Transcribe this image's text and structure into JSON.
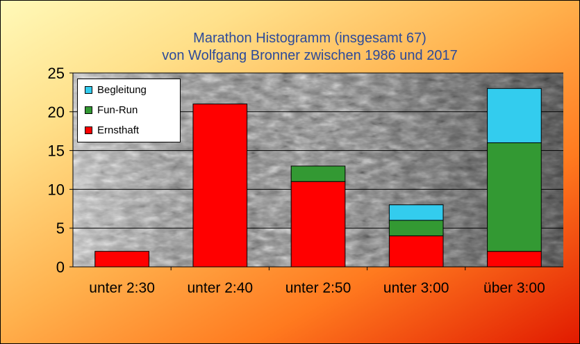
{
  "chart_data": {
    "type": "bar",
    "stacked": true,
    "title": "Marathon Histogramm (insgesamt 67)",
    "subtitle": "von Wolfgang Bronner zwischen 1986 und 2017",
    "categories": [
      "unter 2:30",
      "unter 2:40",
      "unter 2:50",
      "unter 3:00",
      "über 3:00"
    ],
    "series": [
      {
        "name": "Ernsthaft",
        "color": "#ff0000",
        "values": [
          2,
          21,
          11,
          4,
          2
        ]
      },
      {
        "name": "Fun-Run",
        "color": "#339933",
        "values": [
          0,
          0,
          2,
          2,
          14
        ]
      },
      {
        "name": "Begleitung",
        "color": "#33ccee",
        "values": [
          0,
          0,
          0,
          2,
          7
        ]
      }
    ],
    "ylim": [
      0,
      25
    ],
    "yticks": [
      "0",
      "5",
      "10",
      "15",
      "20",
      "25"
    ],
    "grid": true,
    "legend_position": "top-left",
    "legend_order": [
      "Begleitung",
      "Fun-Run",
      "Ernsthaft"
    ]
  }
}
